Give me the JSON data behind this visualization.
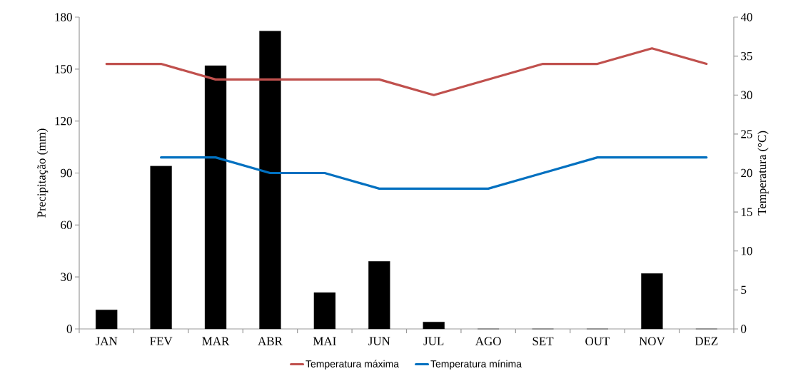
{
  "chart_data": {
    "type": "bar",
    "ylabel": "Precipitação (mm)",
    "y2label": "Temperatura (°C)",
    "categories": [
      "JAN",
      "FEV",
      "MAR",
      "ABR",
      "MAI",
      "JUN",
      "JUL",
      "AGO",
      "SET",
      "OUT",
      "NOV",
      "DEZ"
    ],
    "ylim": [
      0,
      180
    ],
    "yticks": [
      0,
      30,
      60,
      90,
      120,
      150,
      180
    ],
    "y2lim": [
      0,
      40
    ],
    "y2ticks": [
      0,
      5,
      10,
      15,
      20,
      25,
      30,
      35,
      40
    ],
    "grid": false,
    "legend": "bottom",
    "series": [
      {
        "color": "#000000",
        "values": [
          11,
          94,
          152,
          172,
          21,
          39,
          4,
          0,
          0,
          0,
          32,
          0
        ]
      },
      {
        "type": "line",
        "name": "Temperatura máxima",
        "color": "#c0504d",
        "axis": "y2",
        "values": [
          34,
          34,
          32,
          32,
          32,
          32,
          30,
          32,
          34,
          34,
          36,
          34
        ]
      },
      {
        "type": "line",
        "name": "Temperatura mínima",
        "color": "#0070c0",
        "axis": "y2",
        "values": [
          null,
          22,
          22,
          20,
          20,
          18,
          18,
          18,
          20,
          22,
          22,
          22
        ]
      }
    ]
  }
}
